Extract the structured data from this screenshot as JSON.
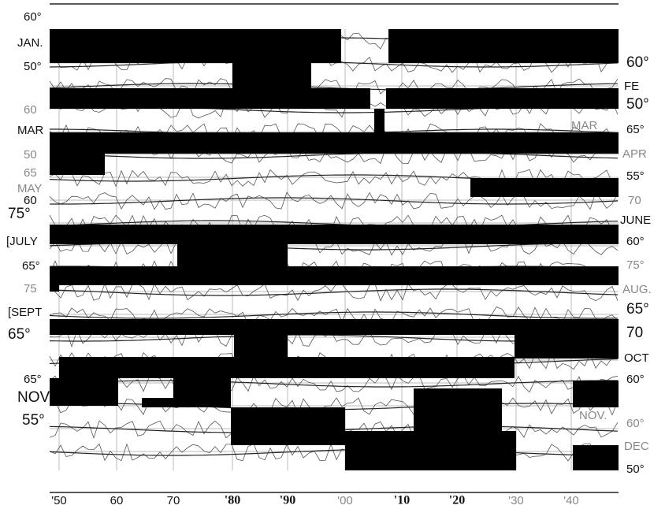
{
  "left_labels": [
    "60°",
    "JAN.",
    "50°",
    "60",
    "MAR",
    "50",
    "65",
    "MAY",
    "60",
    "75°",
    "[JULY",
    "65°",
    "75",
    "[SEPT",
    "65°",
    "65°",
    "NOV",
    "55°"
  ],
  "right_labels": [
    "60°",
    "FE",
    "50°",
    "65°",
    "APR",
    "55°",
    "70",
    "JUNE",
    "60°",
    "75°",
    "AUG.",
    "65°",
    "70",
    "OCT",
    "60°",
    "60°",
    "DEC",
    "50°"
  ],
  "inner_labels": [
    "MAR",
    "NOV."
  ],
  "x_axis_labels": [
    "'50",
    "60",
    "70",
    "'80",
    "'90",
    "'00",
    "'10",
    "'20",
    "'30",
    "'40"
  ]
}
